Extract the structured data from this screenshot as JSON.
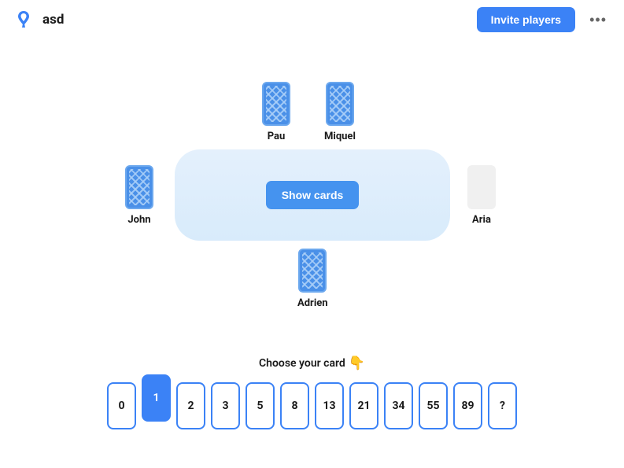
{
  "header": {
    "room_name": "asd",
    "invite_label": "Invite players",
    "more_label": "•••"
  },
  "table": {
    "show_cards_label": "Show cards",
    "background_gradient_top": "#e4f0fc",
    "background_gradient_bottom": "#d8ebfb"
  },
  "players": {
    "top": [
      {
        "name": "Pau",
        "voted": true
      },
      {
        "name": "Miquel",
        "voted": true
      }
    ],
    "left": {
      "name": "John",
      "voted": true
    },
    "right": {
      "name": "Aria",
      "voted": false
    },
    "bottom": {
      "name": "Adrien",
      "voted": true
    }
  },
  "card_style": {
    "back_color": "#4a90e8",
    "back_border": "#6ca8ee",
    "pattern_color": "#acd1f8",
    "empty_color": "#f0f0f0"
  },
  "choose": {
    "label": "Choose your card",
    "emoji": "👇"
  },
  "hand": {
    "cards": [
      "0",
      "1",
      "2",
      "3",
      "5",
      "8",
      "13",
      "21",
      "34",
      "55",
      "89",
      "?"
    ],
    "selected_index": 1,
    "border_color": "#3b82f6",
    "selected_bg": "#3b82f6"
  },
  "colors": {
    "primary": "#3b82f6",
    "text": "#1a1a1a",
    "background": "#ffffff"
  }
}
